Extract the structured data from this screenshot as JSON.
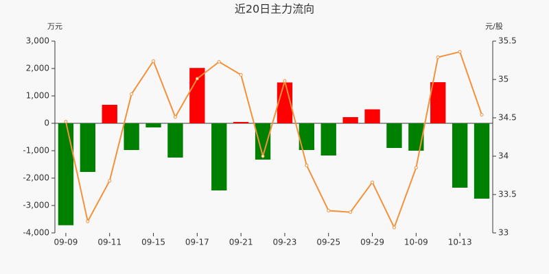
{
  "chart_data": {
    "type": "bar-line",
    "title": "近20日主力流向",
    "ylabel": "万元",
    "y2label": "元/股",
    "categories": [
      "09-09",
      null,
      "09-11",
      null,
      "09-15",
      null,
      "09-17",
      null,
      "09-21",
      null,
      "09-23",
      null,
      "09-25",
      null,
      "09-29",
      null,
      "10-09",
      null,
      "10-13",
      null
    ],
    "bars": {
      "values": [
        -3720,
        -1775,
        675,
        -975,
        -150,
        -1250,
        2020,
        -2450,
        50,
        -1325,
        1490,
        -975,
        -1175,
        225,
        510,
        -900,
        -1000,
        1500,
        -2350,
        -2750
      ],
      "positive_color": "#ff0000",
      "negative_color": "#008000"
    },
    "line": {
      "values": [
        34.45,
        33.15,
        33.68,
        34.81,
        35.24,
        34.51,
        35.01,
        35.23,
        35.06,
        34.0,
        34.98,
        33.88,
        33.29,
        33.27,
        33.66,
        33.07,
        33.85,
        35.29,
        35.36,
        34.54
      ],
      "color": "#f4903a",
      "axis": "y2"
    },
    "ylim": [
      -4000,
      3000
    ],
    "yticks": [
      {
        "value": -4000,
        "label": "-4,000"
      },
      {
        "value": -3000,
        "label": "-3,000"
      },
      {
        "value": -2000,
        "label": "-2,000"
      },
      {
        "value": -1000,
        "label": "-1,000"
      },
      0,
      {
        "value": 1000,
        "label": "1,000"
      },
      {
        "value": 2000,
        "label": "2,000"
      },
      {
        "value": 3000,
        "label": "3,000"
      }
    ],
    "y2lim": [
      33,
      35.5
    ],
    "y2ticks": [
      33,
      33.5,
      34,
      34.5,
      35,
      35.5
    ]
  }
}
